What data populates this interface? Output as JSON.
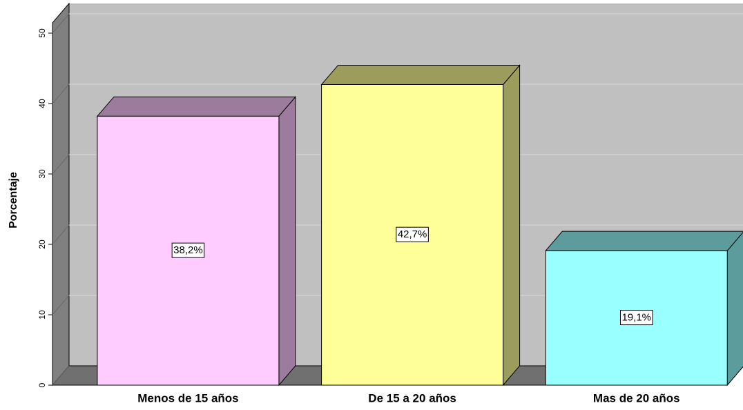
{
  "chart_data": {
    "type": "bar3d",
    "y_axis_label": "Porcentaje",
    "categories": [
      "Menos de 15 años",
      "De 15 a 20 años",
      "Mas de 20 años"
    ],
    "values": [
      38.2,
      42.7,
      19.1
    ],
    "value_labels": [
      "38,2%",
      "42,7%",
      "19,1%"
    ],
    "colors": [
      "#ffccff",
      "#ffff99",
      "#99ffff"
    ],
    "ylim": [
      0,
      50
    ],
    "yticks": [
      0,
      10,
      20,
      30,
      40,
      50
    ],
    "grid": true
  }
}
